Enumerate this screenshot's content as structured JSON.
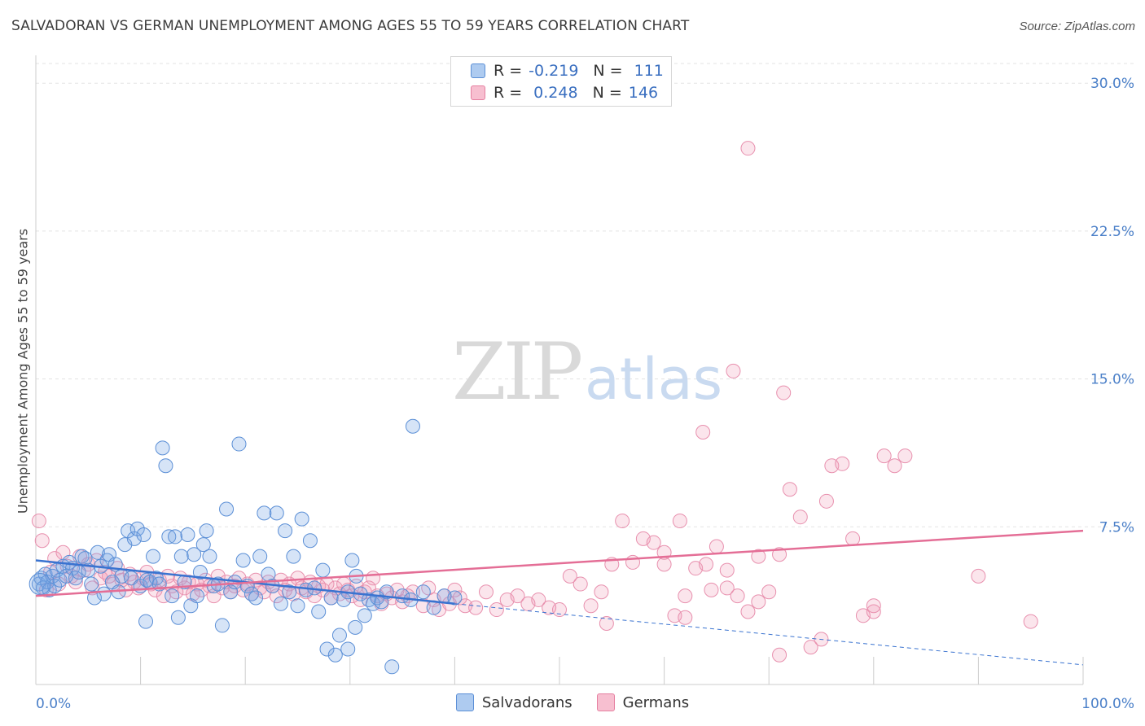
{
  "title": "SALVADORAN VS GERMAN UNEMPLOYMENT AMONG AGES 55 TO 59 YEARS CORRELATION CHART",
  "source": "Source: ZipAtlas.com",
  "watermark": {
    "zip": "ZIP",
    "atlas": "atlas"
  },
  "legend": {
    "rows": [
      {
        "r_label": "R =",
        "r_value": "-0.219",
        "n_label": "N =",
        "n_value": "111",
        "fill": "#aecbf0",
        "stroke": "#5b8fd6"
      },
      {
        "r_label": "R =",
        "r_value": "0.248",
        "n_label": "N =",
        "n_value": "146",
        "fill": "#f7bfd0",
        "stroke": "#e57fa0"
      }
    ]
  },
  "bottom_legend": [
    "Salvadorans",
    "Germans"
  ],
  "colors": {
    "salvadorans_fill": "rgba(120,165,230,0.30)",
    "salvadorans_stroke": "#5b8fd6",
    "salvadorans_line": "#3a73d0",
    "germans_fill": "rgba(240,150,180,0.25)",
    "germans_stroke": "#e890ae",
    "germans_line": "#e46e96",
    "tick_text": "#4a7fc8"
  },
  "chart_data": {
    "type": "scatter",
    "title": "SALVADORAN VS GERMAN UNEMPLOYMENT AMONG AGES 55 TO 59 YEARS CORRELATION CHART",
    "xlabel": "",
    "ylabel": "Unemployment Among Ages 55 to 59 years",
    "xlim": [
      0,
      100
    ],
    "ylim": [
      0,
      31
    ],
    "x_tick_labels": [
      "0.0%",
      "100.0%"
    ],
    "y_ticks": [
      7.5,
      15.0,
      22.5,
      30.0
    ],
    "y_tick_labels": [
      "7.5%",
      "15.0%",
      "22.5%",
      "30.0%"
    ],
    "grid": true,
    "series": [
      {
        "name": "Salvadorans",
        "r": -0.219,
        "n": 111,
        "trend": {
          "x0": 0,
          "y0": 5.8,
          "x1": 40,
          "y1": 3.6,
          "dashed_to_x": 100,
          "dashed_to_y": 0.5
        },
        "points": [
          [
            0.3,
            4.6
          ],
          [
            0.5,
            4.9
          ],
          [
            0.7,
            4.4
          ],
          [
            0.9,
            5.1
          ],
          [
            1.1,
            4.7
          ],
          [
            1.3,
            4.3
          ],
          [
            1.6,
            5.0
          ],
          [
            1.8,
            4.5
          ],
          [
            2.0,
            5.3
          ],
          [
            2.3,
            4.8
          ],
          [
            2.6,
            5.5
          ],
          [
            2.9,
            5.0
          ],
          [
            3.2,
            5.7
          ],
          [
            3.5,
            5.4
          ],
          [
            3.8,
            4.9
          ],
          [
            4.1,
            5.2
          ],
          [
            4.4,
            6.0
          ],
          [
            4.7,
            5.9
          ],
          [
            5.0,
            5.3
          ],
          [
            5.3,
            4.6
          ],
          [
            5.6,
            3.9
          ],
          [
            5.9,
            6.2
          ],
          [
            6.2,
            5.5
          ],
          [
            6.5,
            4.1
          ],
          [
            6.8,
            5.8
          ],
          [
            7.0,
            6.1
          ],
          [
            7.3,
            4.7
          ],
          [
            7.6,
            5.6
          ],
          [
            7.9,
            4.2
          ],
          [
            8.2,
            5.0
          ],
          [
            8.5,
            6.6
          ],
          [
            8.8,
            7.3
          ],
          [
            9.1,
            4.9
          ],
          [
            9.4,
            6.9
          ],
          [
            9.7,
            7.4
          ],
          [
            10.0,
            4.5
          ],
          [
            10.3,
            7.1
          ],
          [
            10.6,
            4.8
          ],
          [
            10.9,
            4.7
          ],
          [
            11.2,
            6.0
          ],
          [
            11.5,
            4.9
          ],
          [
            11.8,
            4.6
          ],
          [
            12.1,
            11.5
          ],
          [
            12.4,
            10.6
          ],
          [
            12.7,
            7.0
          ],
          [
            13.0,
            4.0
          ],
          [
            13.3,
            7.0
          ],
          [
            13.6,
            2.9
          ],
          [
            13.9,
            6.0
          ],
          [
            14.2,
            4.7
          ],
          [
            14.5,
            7.1
          ],
          [
            14.8,
            3.5
          ],
          [
            15.1,
            6.1
          ],
          [
            15.4,
            4.0
          ],
          [
            15.7,
            5.2
          ],
          [
            16.0,
            6.6
          ],
          [
            16.3,
            7.3
          ],
          [
            16.6,
            6.0
          ],
          [
            17.0,
            4.5
          ],
          [
            17.4,
            4.6
          ],
          [
            17.8,
            2.5
          ],
          [
            18.2,
            8.4
          ],
          [
            18.6,
            4.2
          ],
          [
            19.0,
            4.7
          ],
          [
            19.4,
            11.7
          ],
          [
            19.8,
            5.8
          ],
          [
            20.2,
            4.5
          ],
          [
            20.6,
            4.1
          ],
          [
            21.0,
            3.9
          ],
          [
            21.4,
            6.0
          ],
          [
            21.8,
            8.2
          ],
          [
            22.2,
            5.1
          ],
          [
            22.6,
            4.5
          ],
          [
            23.0,
            8.2
          ],
          [
            23.4,
            3.6
          ],
          [
            23.8,
            7.3
          ],
          [
            24.2,
            4.2
          ],
          [
            24.6,
            6.0
          ],
          [
            25.0,
            3.5
          ],
          [
            25.4,
            7.9
          ],
          [
            25.8,
            4.3
          ],
          [
            26.2,
            6.8
          ],
          [
            26.6,
            4.4
          ],
          [
            27.0,
            3.2
          ],
          [
            27.4,
            5.3
          ],
          [
            27.8,
            1.3
          ],
          [
            28.2,
            3.9
          ],
          [
            28.6,
            1.0
          ],
          [
            29.0,
            2.0
          ],
          [
            29.4,
            3.8
          ],
          [
            29.8,
            4.2
          ],
          [
            30.2,
            5.8
          ],
          [
            30.6,
            5.0
          ],
          [
            31.0,
            4.1
          ],
          [
            31.4,
            3.0
          ],
          [
            31.8,
            3.8
          ],
          [
            32.2,
            3.6
          ],
          [
            32.6,
            3.9
          ],
          [
            29.8,
            1.3
          ],
          [
            33.0,
            3.7
          ],
          [
            33.5,
            4.2
          ],
          [
            34.0,
            0.4
          ],
          [
            35.0,
            4.0
          ],
          [
            36.0,
            12.6
          ],
          [
            37.0,
            4.2
          ],
          [
            38.0,
            3.4
          ],
          [
            39.0,
            4.0
          ],
          [
            40.0,
            3.9
          ],
          [
            35.8,
            3.8
          ],
          [
            30.5,
            2.4
          ],
          [
            10.5,
            2.7
          ]
        ]
      },
      {
        "name": "Germans",
        "r": 0.248,
        "n": 146,
        "trend": {
          "x0": 0,
          "y0": 4.0,
          "x1": 100,
          "y1": 7.3
        },
        "points": [
          [
            0.3,
            7.8
          ],
          [
            0.6,
            6.8
          ],
          [
            1.0,
            4.3
          ],
          [
            1.4,
            5.2
          ],
          [
            1.8,
            5.9
          ],
          [
            2.2,
            4.6
          ],
          [
            2.6,
            6.2
          ],
          [
            3.0,
            5.5
          ],
          [
            3.4,
            5.0
          ],
          [
            3.8,
            4.7
          ],
          [
            4.2,
            6.0
          ],
          [
            4.6,
            5.3
          ],
          [
            5.0,
            5.6
          ],
          [
            5.4,
            4.4
          ],
          [
            5.8,
            5.8
          ],
          [
            6.2,
            4.9
          ],
          [
            6.6,
            5.2
          ],
          [
            7.0,
            5.0
          ],
          [
            7.4,
            4.6
          ],
          [
            7.8,
            5.4
          ],
          [
            8.2,
            4.8
          ],
          [
            8.6,
            4.3
          ],
          [
            9.0,
            5.1
          ],
          [
            9.4,
            4.7
          ],
          [
            9.8,
            4.4
          ],
          [
            10.2,
            4.9
          ],
          [
            10.6,
            5.2
          ],
          [
            11.0,
            4.6
          ],
          [
            11.4,
            4.3
          ],
          [
            11.8,
            4.8
          ],
          [
            12.2,
            4.0
          ],
          [
            12.6,
            5.0
          ],
          [
            13.0,
            4.5
          ],
          [
            13.4,
            4.2
          ],
          [
            13.8,
            4.9
          ],
          [
            14.2,
            4.4
          ],
          [
            14.6,
            4.7
          ],
          [
            15.0,
            4.1
          ],
          [
            15.4,
            4.6
          ],
          [
            15.8,
            4.3
          ],
          [
            16.2,
            4.8
          ],
          [
            16.6,
            4.5
          ],
          [
            17.0,
            4.0
          ],
          [
            17.4,
            5.0
          ],
          [
            17.8,
            4.4
          ],
          [
            18.2,
            4.7
          ],
          [
            18.6,
            4.2
          ],
          [
            19.0,
            4.5
          ],
          [
            19.4,
            4.9
          ],
          [
            19.8,
            4.3
          ],
          [
            20.2,
            4.6
          ],
          [
            20.6,
            4.1
          ],
          [
            21.0,
            4.8
          ],
          [
            21.4,
            4.4
          ],
          [
            21.8,
            4.2
          ],
          [
            22.2,
            4.7
          ],
          [
            22.6,
            4.5
          ],
          [
            23.0,
            4.0
          ],
          [
            23.4,
            4.8
          ],
          [
            23.8,
            4.3
          ],
          [
            24.2,
            4.6
          ],
          [
            24.6,
            4.1
          ],
          [
            25.0,
            4.9
          ],
          [
            25.4,
            4.4
          ],
          [
            25.8,
            4.2
          ],
          [
            26.2,
            4.7
          ],
          [
            26.6,
            4.0
          ],
          [
            27.0,
            4.5
          ],
          [
            27.4,
            4.3
          ],
          [
            27.8,
            4.6
          ],
          [
            28.2,
            3.9
          ],
          [
            28.6,
            4.4
          ],
          [
            29.0,
            4.1
          ],
          [
            29.4,
            4.6
          ],
          [
            29.8,
            4.3
          ],
          [
            30.2,
            4.0
          ],
          [
            30.6,
            4.5
          ],
          [
            31.0,
            3.8
          ],
          [
            31.4,
            4.2
          ],
          [
            31.8,
            4.4
          ],
          [
            32.2,
            4.9
          ],
          [
            32.6,
            4.0
          ],
          [
            33.0,
            3.6
          ],
          [
            33.5,
            4.1
          ],
          [
            34.0,
            3.9
          ],
          [
            34.5,
            4.3
          ],
          [
            35.0,
            3.7
          ],
          [
            35.5,
            4.0
          ],
          [
            36.0,
            4.2
          ],
          [
            37.0,
            3.5
          ],
          [
            37.5,
            4.4
          ],
          [
            38.0,
            3.8
          ],
          [
            38.5,
            3.3
          ],
          [
            39.0,
            4.0
          ],
          [
            39.5,
            3.6
          ],
          [
            40.0,
            4.3
          ],
          [
            40.5,
            3.9
          ],
          [
            41.0,
            3.5
          ],
          [
            42.0,
            3.4
          ],
          [
            43.0,
            4.2
          ],
          [
            44.0,
            3.3
          ],
          [
            45.0,
            3.8
          ],
          [
            46.0,
            4.0
          ],
          [
            47.0,
            3.6
          ],
          [
            48.0,
            3.8
          ],
          [
            49.0,
            3.4
          ],
          [
            50.0,
            3.3
          ],
          [
            51.0,
            5.0
          ],
          [
            52.0,
            4.6
          ],
          [
            53.0,
            3.5
          ],
          [
            54.0,
            4.2
          ],
          [
            54.5,
            2.6
          ],
          [
            55.0,
            5.6
          ],
          [
            56.0,
            7.8
          ],
          [
            57.0,
            5.7
          ],
          [
            58.0,
            6.9
          ],
          [
            59.0,
            6.7
          ],
          [
            60.0,
            5.6
          ],
          [
            61.0,
            3.0
          ],
          [
            61.5,
            7.8
          ],
          [
            62.0,
            4.0
          ],
          [
            63.0,
            5.4
          ],
          [
            64.0,
            5.6
          ],
          [
            65.0,
            6.5
          ],
          [
            66.0,
            5.3
          ],
          [
            67.0,
            4.0
          ],
          [
            68.0,
            3.2
          ],
          [
            69.0,
            6.0
          ],
          [
            70.0,
            4.2
          ],
          [
            71.0,
            6.1
          ],
          [
            72.0,
            9.4
          ],
          [
            73.0,
            8.0
          ],
          [
            74.0,
            1.4
          ],
          [
            75.0,
            1.8
          ],
          [
            76.0,
            10.6
          ],
          [
            77.0,
            10.7
          ],
          [
            78.0,
            6.9
          ],
          [
            79.0,
            3.0
          ],
          [
            80.0,
            3.2
          ],
          [
            81.0,
            11.1
          ],
          [
            82.0,
            10.6
          ],
          [
            83.0,
            11.1
          ],
          [
            63.7,
            12.3
          ],
          [
            64.5,
            4.3
          ],
          [
            66.6,
            15.4
          ],
          [
            71.4,
            14.3
          ],
          [
            68.0,
            26.7
          ],
          [
            80.0,
            3.5
          ],
          [
            90.0,
            5.0
          ],
          [
            95.0,
            2.7
          ],
          [
            71.0,
            1.0
          ],
          [
            75.5,
            8.8
          ],
          [
            66.0,
            4.4
          ],
          [
            60.0,
            6.2
          ],
          [
            62.0,
            2.9
          ],
          [
            69.0,
            3.7
          ]
        ]
      }
    ]
  }
}
